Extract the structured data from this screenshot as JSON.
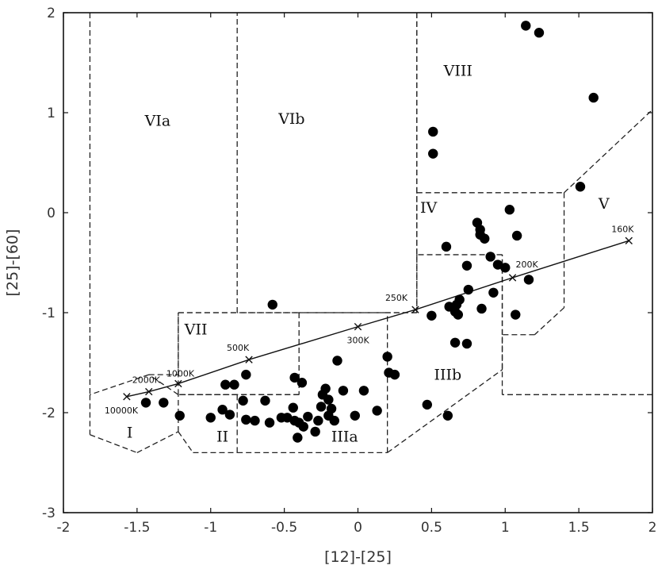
{
  "chart_data": {
    "type": "scatter",
    "xlabel": "[12]-[25]",
    "ylabel": "[25]-[60]",
    "xlim": [
      -2,
      2
    ],
    "ylim": [
      -3,
      2
    ],
    "xticks": [
      -2,
      -1.5,
      -1,
      -0.5,
      0,
      0.5,
      1,
      1.5,
      2
    ],
    "xtick_labels": [
      "-2",
      "-1.5",
      "-1",
      "-0.5",
      "0",
      "0.5",
      "1",
      "1.5",
      "2"
    ],
    "yticks": [
      -3,
      -2,
      -1,
      0,
      1,
      2
    ],
    "ytick_labels": [
      "-3",
      "-2",
      "-1",
      "0",
      "1",
      "2"
    ],
    "grid": false,
    "points": [
      [
        1.14,
        1.87
      ],
      [
        1.23,
        1.8
      ],
      [
        1.6,
        1.15
      ],
      [
        0.51,
        0.81
      ],
      [
        0.51,
        0.59
      ],
      [
        1.51,
        0.26
      ],
      [
        1.03,
        0.03
      ],
      [
        0.81,
        -0.1
      ],
      [
        0.83,
        -0.17
      ],
      [
        0.83,
        -0.22
      ],
      [
        0.86,
        -0.26
      ],
      [
        1.08,
        -0.23
      ],
      [
        0.6,
        -0.34
      ],
      [
        0.9,
        -0.44
      ],
      [
        0.95,
        -0.52
      ],
      [
        0.74,
        -0.53
      ],
      [
        1.0,
        -0.55
      ],
      [
        1.16,
        -0.67
      ],
      [
        0.75,
        -0.77
      ],
      [
        0.92,
        -0.8
      ],
      [
        0.69,
        -0.87
      ],
      [
        0.67,
        -0.92
      ],
      [
        0.62,
        -0.94
      ],
      [
        0.84,
        -0.96
      ],
      [
        0.66,
        -0.99
      ],
      [
        0.68,
        -1.02
      ],
      [
        0.5,
        -1.03
      ],
      [
        1.07,
        -1.02
      ],
      [
        0.66,
        -1.3
      ],
      [
        0.74,
        -1.31
      ],
      [
        -0.58,
        -0.92
      ],
      [
        0.2,
        -1.44
      ],
      [
        0.21,
        -1.6
      ],
      [
        0.25,
        -1.62
      ],
      [
        -0.14,
        -1.48
      ],
      [
        -0.76,
        -1.62
      ],
      [
        -0.43,
        -1.65
      ],
      [
        -0.38,
        -1.7
      ],
      [
        -0.9,
        -1.72
      ],
      [
        -0.84,
        -1.72
      ],
      [
        -0.22,
        -1.76
      ],
      [
        -1.44,
        -1.9
      ],
      [
        -1.32,
        -1.9
      ],
      [
        -0.78,
        -1.88
      ],
      [
        -0.63,
        -1.88
      ],
      [
        -0.24,
        -1.82
      ],
      [
        -0.2,
        -1.87
      ],
      [
        -0.1,
        -1.78
      ],
      [
        0.04,
        -1.78
      ],
      [
        -1.21,
        -2.03
      ],
      [
        -1.0,
        -2.05
      ],
      [
        -0.92,
        -1.97
      ],
      [
        -0.87,
        -2.02
      ],
      [
        -0.76,
        -2.07
      ],
      [
        -0.7,
        -2.08
      ],
      [
        -0.6,
        -2.1
      ],
      [
        -0.52,
        -2.05
      ],
      [
        -0.48,
        -2.05
      ],
      [
        -0.44,
        -1.95
      ],
      [
        -0.43,
        -2.08
      ],
      [
        -0.41,
        -2.25
      ],
      [
        -0.4,
        -2.1
      ],
      [
        -0.37,
        -2.14
      ],
      [
        -0.34,
        -2.04
      ],
      [
        -0.29,
        -2.19
      ],
      [
        -0.27,
        -2.08
      ],
      [
        -0.25,
        -1.94
      ],
      [
        -0.2,
        -2.03
      ],
      [
        -0.18,
        -1.96
      ],
      [
        -0.16,
        -2.08
      ],
      [
        -0.02,
        -2.03
      ],
      [
        0.13,
        -1.98
      ],
      [
        0.47,
        -1.92
      ],
      [
        0.61,
        -2.03
      ]
    ],
    "model_curve": {
      "points": [
        [
          -1.57,
          -1.84
        ],
        [
          -1.42,
          -1.79
        ],
        [
          -1.22,
          -1.71
        ],
        [
          -0.74,
          -1.47
        ],
        [
          0.0,
          -1.14
        ],
        [
          0.39,
          -0.97
        ],
        [
          1.05,
          -0.65
        ],
        [
          1.84,
          -0.28
        ]
      ],
      "temperature_labels": [
        "10000K",
        "2000K",
        "1000K",
        "500K",
        "300K",
        "250K",
        "200K",
        "160K"
      ]
    },
    "region_labels": [
      "I",
      "II",
      "IIIa",
      "IIIb",
      "IV",
      "V",
      "VIa",
      "VIb",
      "VII",
      "VIII"
    ],
    "regions": [
      {
        "label": "I",
        "boundary": [
          [
            -1.82,
            -2.22
          ],
          [
            -1.5,
            -2.4
          ],
          [
            -1.22,
            -2.19
          ],
          [
            -1.22,
            -1.82
          ],
          [
            -1.42,
            -1.62
          ],
          [
            -1.82,
            -1.82
          ]
        ]
      },
      {
        "label": "II",
        "boundary": [
          [
            -1.22,
            -2.19
          ],
          [
            -1.12,
            -2.4
          ],
          [
            -0.82,
            -2.4
          ],
          [
            -0.82,
            -1.82
          ],
          [
            -1.22,
            -1.82
          ]
        ]
      },
      {
        "label": "IIIa",
        "boundary": [
          [
            -0.82,
            -2.4
          ],
          [
            0.2,
            -2.4
          ],
          [
            0.2,
            -1.0
          ],
          [
            -0.4,
            -1.0
          ],
          [
            -0.4,
            -1.82
          ],
          [
            -0.82,
            -1.82
          ]
        ]
      },
      {
        "label": "IIIb",
        "boundary": [
          [
            0.2,
            -2.4
          ],
          [
            0.98,
            -1.57
          ],
          [
            0.98,
            -0.42
          ],
          [
            0.4,
            -0.42
          ],
          [
            0.4,
            -1.0
          ],
          [
            0.2,
            -1.0
          ]
        ]
      },
      {
        "label": "IV",
        "boundary": [
          [
            0.4,
            -0.42
          ],
          [
            0.4,
            0.2
          ],
          [
            1.4,
            0.2
          ],
          [
            1.4,
            -0.95
          ],
          [
            1.2,
            -1.22
          ],
          [
            0.98,
            -1.22
          ],
          [
            0.98,
            -0.42
          ]
        ]
      },
      {
        "label": "V",
        "boundary": [
          [
            1.4,
            0.2
          ],
          [
            2.0,
            1.03
          ],
          [
            2.0,
            -1.82
          ],
          [
            0.98,
            -1.82
          ],
          [
            0.98,
            -1.22
          ],
          [
            1.2,
            -1.22
          ],
          [
            1.4,
            -0.95
          ]
        ]
      },
      {
        "label": "VIa",
        "boundary": [
          [
            -1.82,
            2.0
          ],
          [
            -1.82,
            -1.82
          ],
          [
            -1.42,
            -1.62
          ],
          [
            -1.22,
            -1.62
          ],
          [
            -1.22,
            -1.0
          ],
          [
            -0.82,
            -1.0
          ],
          [
            -0.82,
            2.0
          ]
        ]
      },
      {
        "label": "VIb",
        "boundary": [
          [
            -0.82,
            2.0
          ],
          [
            0.4,
            2.0
          ],
          [
            0.4,
            -1.0
          ],
          [
            -0.4,
            -1.0
          ],
          [
            -0.82,
            -1.0
          ]
        ]
      },
      {
        "label": "VII",
        "boundary": [
          [
            -1.22,
            -1.0
          ],
          [
            -0.4,
            -1.0
          ],
          [
            -0.4,
            -1.82
          ],
          [
            -1.22,
            -1.82
          ]
        ]
      },
      {
        "label": "VIII",
        "boundary": [
          [
            0.4,
            2.0
          ],
          [
            2.0,
            2.0
          ],
          [
            2.0,
            1.03
          ],
          [
            1.4,
            0.2
          ],
          [
            0.4,
            0.2
          ]
        ]
      }
    ]
  }
}
